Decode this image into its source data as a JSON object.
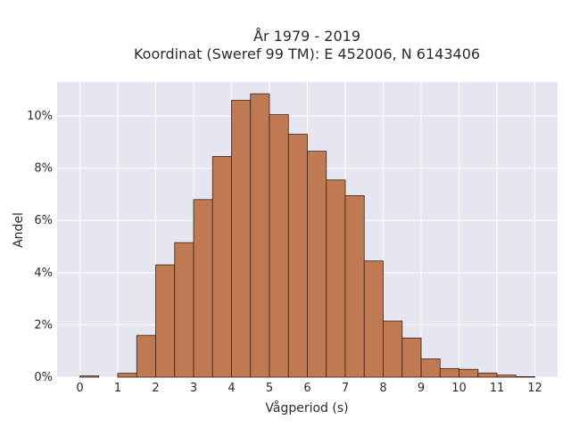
{
  "chart_data": {
    "type": "bar",
    "title_line1": "År 1979 - 2019",
    "title_line2": "Koordinat (Sweref 99 TM): E 452006, N 6143406",
    "xlabel": "Vågperiod (s)",
    "ylabel": "Andel",
    "bin_width": 0.5,
    "x_ticks": [
      "0",
      "1",
      "2",
      "3",
      "4",
      "5",
      "6",
      "7",
      "8",
      "9",
      "10",
      "11",
      "12"
    ],
    "y_ticks": [
      "0%",
      "2%",
      "4%",
      "6%",
      "8%",
      "10%"
    ],
    "xlim": [
      -0.6,
      12.6
    ],
    "ylim": [
      0,
      11.3
    ],
    "grid": true,
    "bar_color": "#c07a53",
    "bins": [
      {
        "x": 0.0,
        "value": 0.05
      },
      {
        "x": 1.0,
        "value": 0.15
      },
      {
        "x": 1.5,
        "value": 1.6
      },
      {
        "x": 2.0,
        "value": 4.3
      },
      {
        "x": 2.5,
        "value": 5.15
      },
      {
        "x": 3.0,
        "value": 6.8
      },
      {
        "x": 3.5,
        "value": 8.45
      },
      {
        "x": 4.0,
        "value": 10.6
      },
      {
        "x": 4.5,
        "value": 10.85
      },
      {
        "x": 5.0,
        "value": 10.05
      },
      {
        "x": 5.5,
        "value": 9.3
      },
      {
        "x": 6.0,
        "value": 8.65
      },
      {
        "x": 6.5,
        "value": 7.55
      },
      {
        "x": 7.0,
        "value": 6.95
      },
      {
        "x": 7.5,
        "value": 4.45
      },
      {
        "x": 8.0,
        "value": 2.15
      },
      {
        "x": 8.5,
        "value": 1.5
      },
      {
        "x": 9.0,
        "value": 0.7
      },
      {
        "x": 9.5,
        "value": 0.33
      },
      {
        "x": 10.0,
        "value": 0.3
      },
      {
        "x": 10.5,
        "value": 0.16
      },
      {
        "x": 11.0,
        "value": 0.08
      },
      {
        "x": 11.5,
        "value": 0.02
      }
    ]
  }
}
